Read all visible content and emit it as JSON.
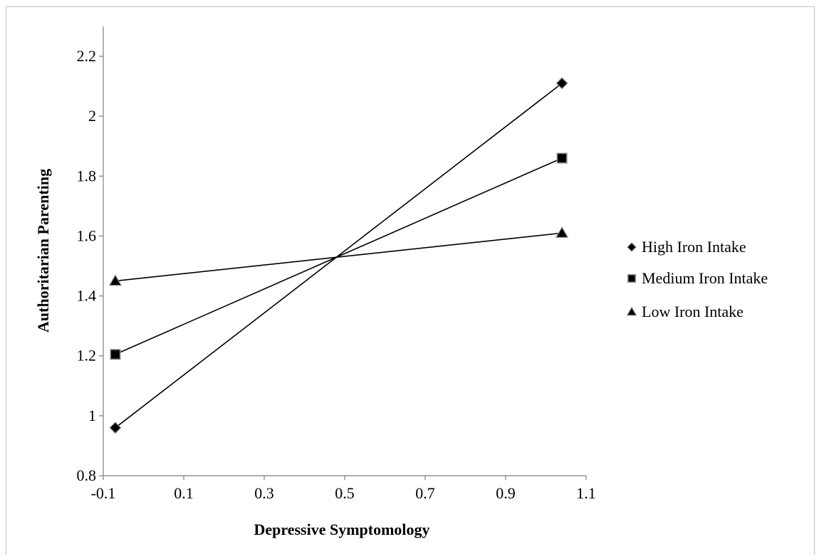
{
  "chart_data": {
    "type": "line",
    "title": "",
    "xlabel": "Depressive Symptomology",
    "ylabel": "Authoritarian Parenting",
    "xlim": [
      -0.1,
      1.1
    ],
    "ylim": [
      0.8,
      2.3
    ],
    "xticks": [
      -0.1,
      0.1,
      0.3,
      0.5,
      0.7,
      0.9,
      1.1
    ],
    "xtick_labels": [
      "-0.1",
      "0.1",
      "0.3",
      "0.5",
      "0.7",
      "0.9",
      "1.1"
    ],
    "yticks": [
      0.8,
      1.0,
      1.2,
      1.4,
      1.6,
      1.8,
      2.0,
      2.2
    ],
    "ytick_labels": [
      "0.8",
      "1",
      "1.2",
      "1.4",
      "1.6",
      "1.8",
      "2",
      "2.2"
    ],
    "grid": false,
    "legend_position": "right",
    "x": [
      -0.07,
      1.04
    ],
    "series": [
      {
        "name": "High Iron Intake",
        "marker": "diamond",
        "values": [
          0.96,
          2.11
        ]
      },
      {
        "name": "Medium Iron Intake",
        "marker": "square",
        "values": [
          1.205,
          1.86
        ]
      },
      {
        "name": "Low Iron Intake",
        "marker": "triangle",
        "values": [
          1.45,
          1.61
        ]
      }
    ]
  }
}
